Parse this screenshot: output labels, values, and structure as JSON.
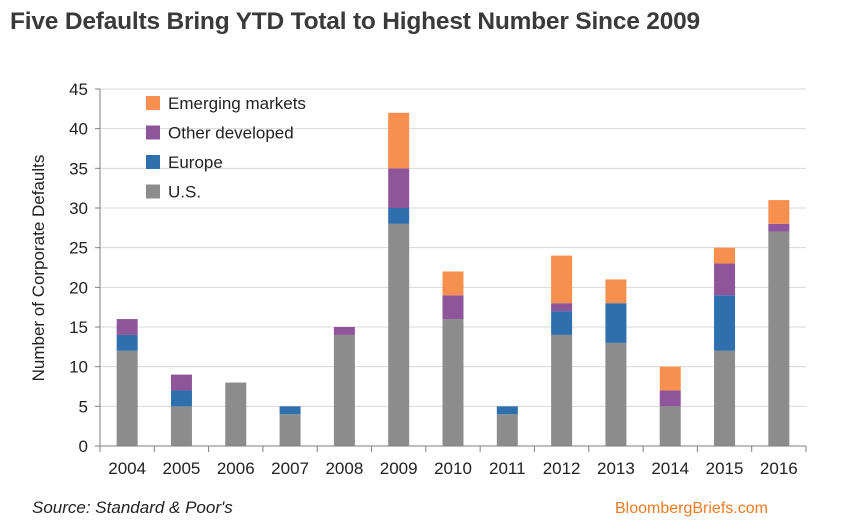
{
  "title": "Five Defaults Bring YTD Total to Highest Number Since 2009",
  "source": "Source: Standard & Poor's",
  "brand": "BloombergBriefs.com",
  "colors": {
    "us": "#8c8c8c",
    "europe": "#2f6fad",
    "other_developed": "#8e559a",
    "emerging_markets": "#f7904e",
    "grid": "#d9d9d9",
    "axis": "#7f7f7f",
    "text": "#222222"
  },
  "chart_data": {
    "type": "bar",
    "stacked": true,
    "title": "Five Defaults Bring YTD Total to Highest Number Since 2009",
    "xlabel": "",
    "ylabel": "Number of Corporate Defaults",
    "ylim": [
      0,
      45
    ],
    "yticks": [
      0,
      5,
      10,
      15,
      20,
      25,
      30,
      35,
      40,
      45
    ],
    "grid": true,
    "legend_position": "top-left",
    "categories": [
      "2004",
      "2005",
      "2006",
      "2007",
      "2008",
      "2009",
      "2010",
      "2011",
      "2012",
      "2013",
      "2014",
      "2015",
      "2016"
    ],
    "series": [
      {
        "name": "U.S.",
        "key": "us",
        "values": [
          12,
          5,
          8,
          4,
          14,
          28,
          16,
          4,
          14,
          13,
          5,
          12,
          27
        ]
      },
      {
        "name": "Europe",
        "key": "europe",
        "values": [
          2,
          2,
          0,
          1,
          0,
          2,
          0,
          1,
          3,
          5,
          0,
          7,
          0
        ]
      },
      {
        "name": "Other developed",
        "key": "other_developed",
        "values": [
          2,
          2,
          0,
          0,
          1,
          5,
          3,
          0,
          1,
          0,
          2,
          4,
          1
        ]
      },
      {
        "name": "Emerging markets",
        "key": "emerging_markets",
        "values": [
          0,
          0,
          0,
          0,
          0,
          7,
          3,
          0,
          6,
          3,
          3,
          2,
          3
        ]
      }
    ],
    "legend_order": [
      "emerging_markets",
      "other_developed",
      "europe",
      "us"
    ]
  }
}
